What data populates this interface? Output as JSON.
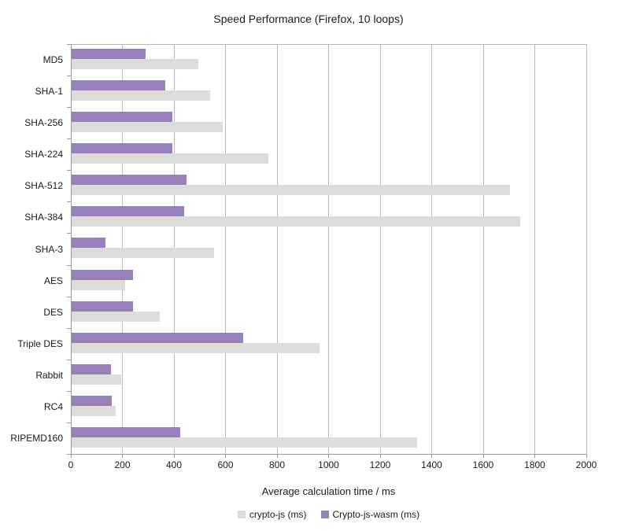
{
  "chart_data": {
    "type": "bar",
    "orientation": "horizontal",
    "title": "Speed Performance (Firefox, 10 loops)",
    "xlabel": "Average calculation time / ms",
    "xlim": [
      0,
      2000
    ],
    "x_tick_step": 200,
    "x_ticks": [
      "0",
      "200",
      "400",
      "600",
      "800",
      "1000",
      "1200",
      "1400",
      "1600",
      "1800",
      "2000"
    ],
    "grid": true,
    "legend_position": "bottom",
    "categories": [
      "MD5",
      "SHA-1",
      "SHA-256",
      "SHA-224",
      "SHA-512",
      "SHA-384",
      "SHA-3",
      "AES",
      "DES",
      "Triple DES",
      "Rabbit",
      "RC4",
      "RIPEMD160"
    ],
    "series": [
      {
        "name": "crypto-js (ms)",
        "color": "#dcdcdc",
        "values": [
          495,
          540,
          590,
          765,
          1705,
          1745,
          555,
          210,
          345,
          965,
          195,
          175,
          1345
        ]
      },
      {
        "name": "Crypto-js-wasm (ms)",
        "color": "#9781bb",
        "values": [
          290,
          365,
          395,
          395,
          450,
          440,
          135,
          240,
          240,
          670,
          155,
          160,
          425
        ]
      }
    ]
  },
  "colors": {
    "background": "#ffffff",
    "gridline": "#b9b9b9",
    "axis": "#9a9a9a",
    "text": "#1a1a1a",
    "series_crypto_js": "#dcdcdc",
    "series_crypto_js_wasm": "#9781bb"
  }
}
